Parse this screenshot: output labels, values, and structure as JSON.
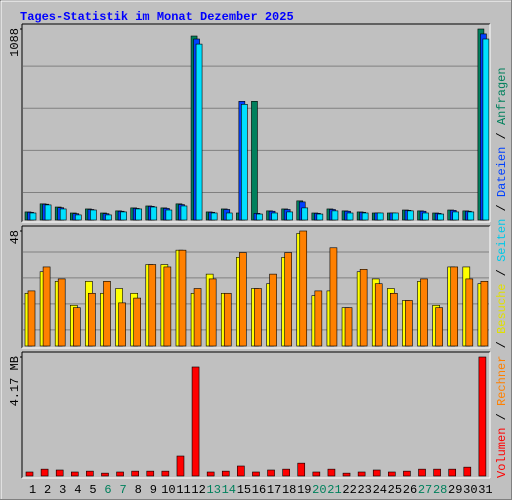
{
  "title": "Tages-Statistik im Monat Dezember 2025",
  "legend_separator": " / ",
  "chart_data": [
    {
      "type": "bar",
      "ylim": [
        0,
        1088
      ],
      "yticks": [
        1088
      ],
      "grid": true,
      "series": [
        {
          "name": "Anfragen",
          "color": "#00805c",
          "values": [
            46,
            92,
            74,
            40,
            63,
            40,
            52,
            69,
            80,
            69,
            92,
            1048,
            46,
            63,
            40,
            676,
            52,
            63,
            109,
            40,
            63,
            52,
            46,
            40,
            40,
            57,
            52,
            40,
            57,
            52,
            1088
          ]
        },
        {
          "name": "Dateien",
          "color": "#0040ff",
          "values": [
            44,
            90,
            70,
            36,
            60,
            36,
            50,
            66,
            78,
            66,
            88,
            1031,
            44,
            60,
            676,
            38,
            50,
            60,
            103,
            38,
            60,
            50,
            44,
            40,
            40,
            55,
            50,
            38,
            55,
            50,
            1060
          ]
        },
        {
          "name": "Seiten",
          "color": "#00e0ff",
          "values": [
            40,
            86,
            63,
            29,
            57,
            29,
            46,
            63,
            74,
            57,
            80,
            1002,
            40,
            40,
            659,
            34,
            40,
            46,
            69,
            34,
            52,
            40,
            40,
            40,
            40,
            52,
            40,
            34,
            46,
            46,
            1031
          ]
        }
      ]
    },
    {
      "type": "bar",
      "ylim": [
        0,
        48
      ],
      "yticks": [
        48
      ],
      "grid": true,
      "series": [
        {
          "name": "Besuche",
          "color": "#ffff00",
          "values": [
            22,
            31,
            27,
            17,
            27,
            22,
            24,
            22,
            34,
            34,
            40,
            22,
            30,
            22,
            37,
            24,
            26,
            37,
            47,
            21,
            23,
            16,
            31,
            28,
            24,
            19,
            27,
            17,
            33,
            33,
            26
          ]
        },
        {
          "name": "Rechner",
          "color": "#ff8000",
          "values": [
            23,
            33,
            28,
            16,
            22,
            27,
            18,
            20,
            34,
            33,
            40,
            24,
            28,
            22,
            39,
            24,
            30,
            39,
            48,
            23,
            41,
            16,
            32,
            26,
            22,
            19,
            28,
            16,
            33,
            28,
            27
          ]
        }
      ]
    },
    {
      "type": "bar",
      "ylim": [
        0,
        4.17
      ],
      "yticks": [
        {
          "value": 4.17,
          "label": "4.17 MB"
        }
      ],
      "grid": false,
      "categories": [
        "1",
        "2",
        "3",
        "4",
        "5",
        "6",
        "7",
        "8",
        "9",
        "10",
        "11",
        "12",
        "13",
        "14",
        "15",
        "16",
        "17",
        "18",
        "19",
        "20",
        "21",
        "22",
        "23",
        "24",
        "25",
        "26",
        "27",
        "28",
        "29",
        "30",
        "31"
      ],
      "highlight_indices": [
        5,
        6,
        12,
        13,
        19,
        20,
        26,
        27
      ],
      "highlight_color": "#00805c",
      "series": [
        {
          "name": "Volumen",
          "color": "#ff0000",
          "values": [
            0.14,
            0.24,
            0.21,
            0.14,
            0.17,
            0.1,
            0.14,
            0.17,
            0.17,
            0.17,
            0.7,
            3.82,
            0.14,
            0.17,
            0.35,
            0.14,
            0.21,
            0.24,
            0.45,
            0.14,
            0.24,
            0.1,
            0.14,
            0.21,
            0.14,
            0.17,
            0.24,
            0.24,
            0.24,
            0.31,
            4.17
          ]
        }
      ]
    }
  ]
}
